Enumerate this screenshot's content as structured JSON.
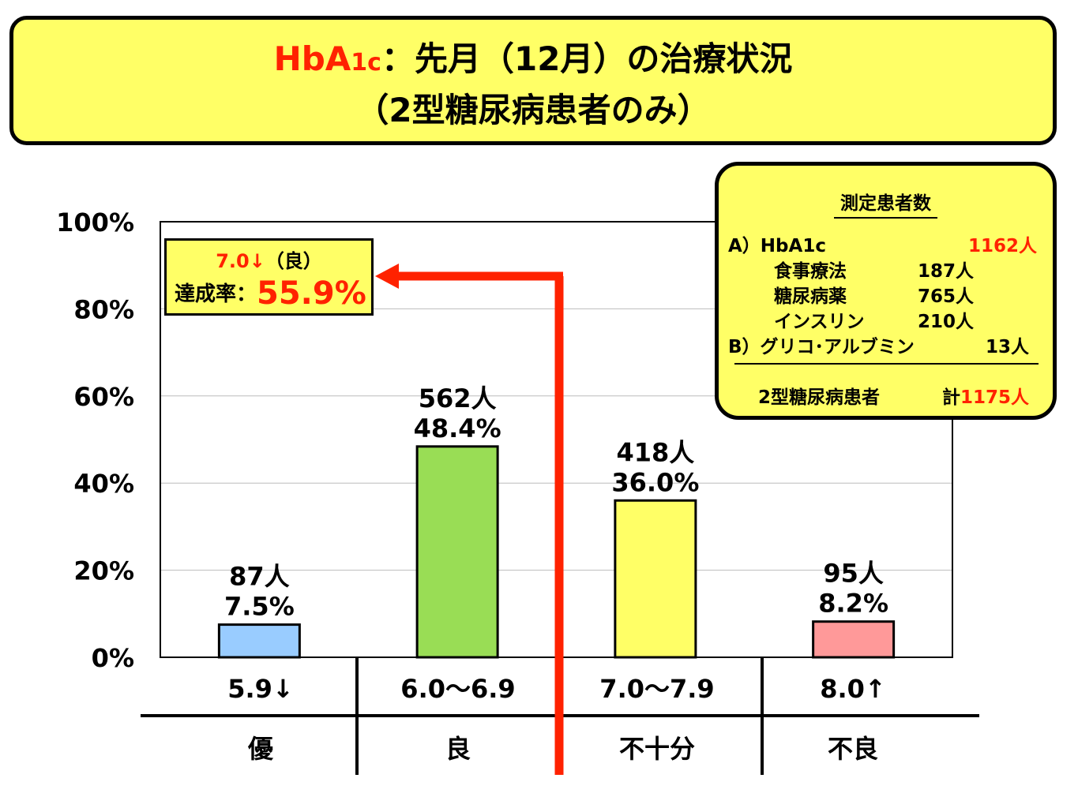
{
  "title": {
    "hba1c": "HbA",
    "hba1c_sub": "1c",
    "main": "：先月（12月）の治療状況",
    "line2": "（2型糖尿病患者のみ）"
  },
  "achievement": {
    "threshold": "7.0↓",
    "grade": "（良）",
    "label": "達成率：",
    "value": "55.9%"
  },
  "patient_counts": {
    "header": "測定患者数",
    "rows": [
      {
        "label": "A）HbA1c",
        "value": "1162人"
      },
      {
        "label": "食事療法",
        "value": "187人"
      },
      {
        "label": "糖尿病薬",
        "value": "765人"
      },
      {
        "label": "インスリン",
        "value": "210人"
      },
      {
        "label": "B）グリコ･アルブミン",
        "value": "13人"
      }
    ],
    "total_label": "2型糖尿病患者",
    "total_prefix": "計",
    "total_value": "1175人"
  },
  "colors": {
    "accent_red": "#ff2200",
    "box_yellow": "#ffff66",
    "bar_blue": "#99ccff",
    "bar_green": "#99dd55",
    "bar_yellow": "#ffff66",
    "bar_pink": "#ff9999"
  },
  "chart_data": {
    "type": "bar",
    "categories": [
      "5.9↓",
      "6.0～6.9",
      "7.0～7.9",
      "8.0↑"
    ],
    "grades": [
      "優",
      "良",
      "不十分",
      "不良"
    ],
    "values": [
      7.5,
      48.4,
      36.0,
      8.2
    ],
    "counts": [
      "87人",
      "562人",
      "418人",
      "95人"
    ],
    "value_labels": [
      "7.5%",
      "48.4%",
      "36.0%",
      "8.2%"
    ],
    "yticks": [
      "0%",
      "20%",
      "40%",
      "60%",
      "80%",
      "100%"
    ],
    "ylim": [
      0,
      100
    ],
    "grid": true
  }
}
